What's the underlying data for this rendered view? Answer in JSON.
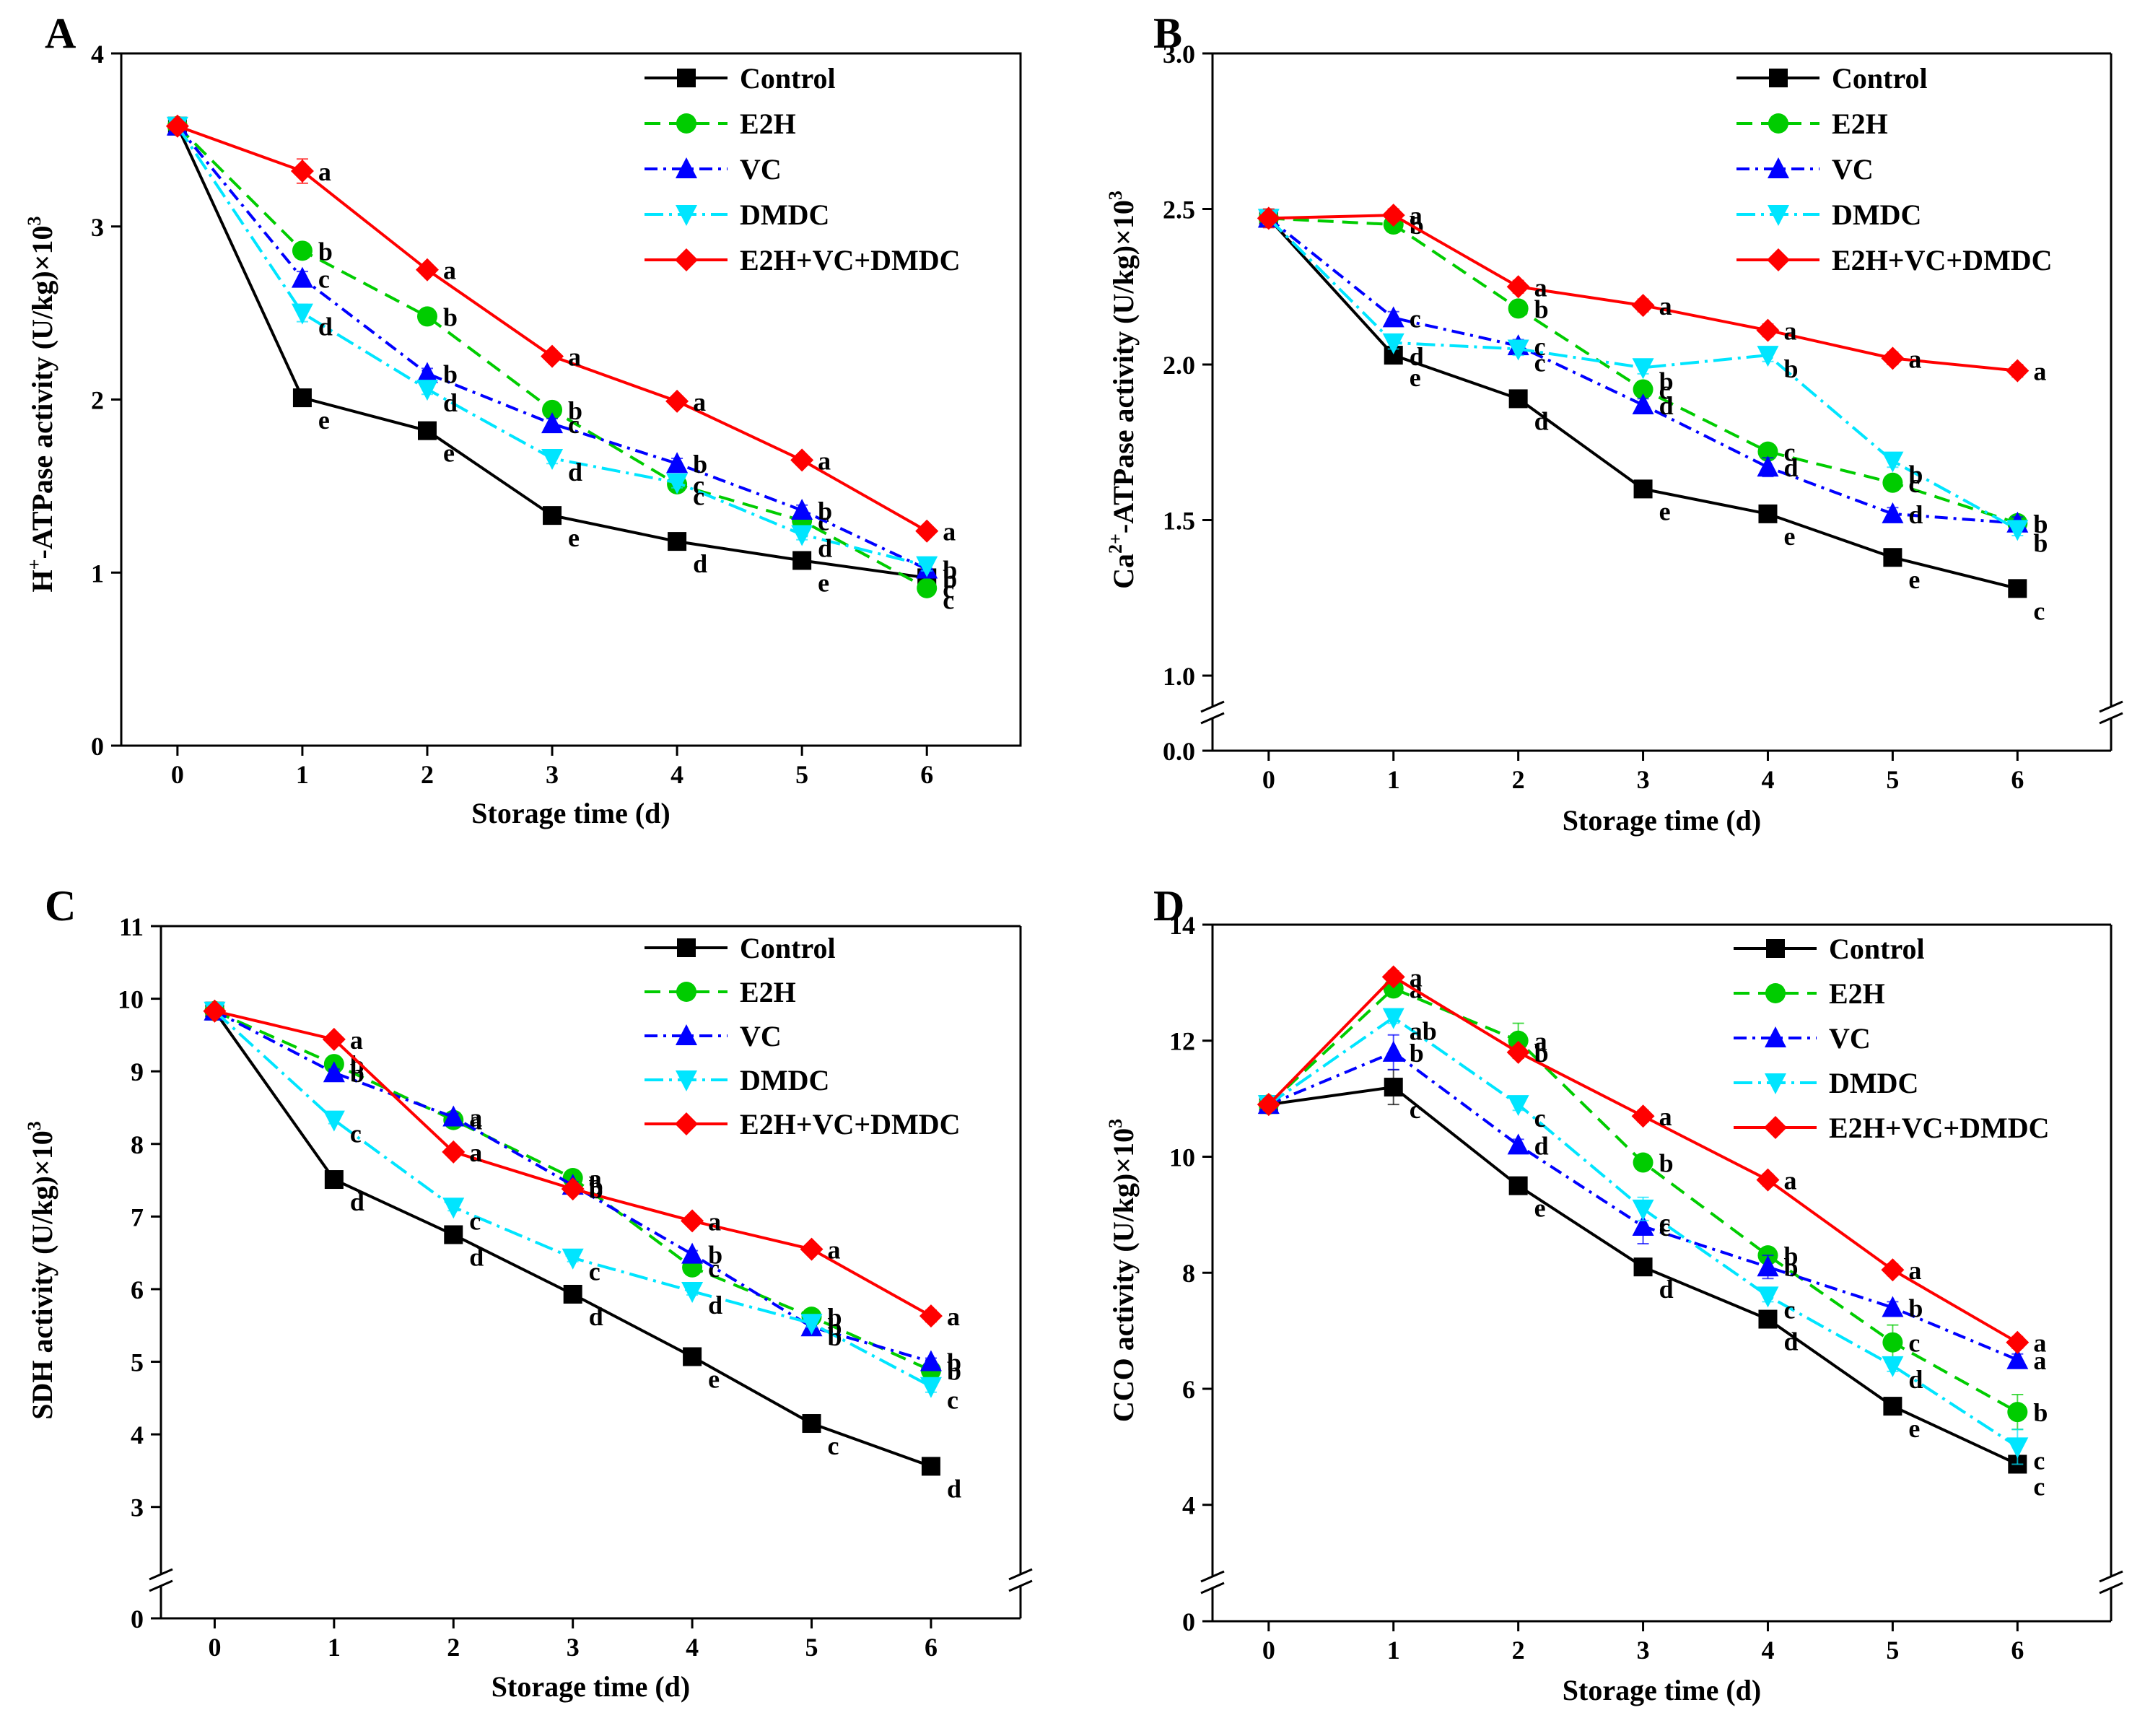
{
  "chart_data": [
    {
      "type": "line",
      "panel": "A",
      "xlabel": "Storage time (d)",
      "ylabel_parts": [
        {
          "t": "H"
        },
        {
          "t": "+",
          "sup": true
        },
        {
          "t": "-ATPase activity (U/kg)×10"
        },
        {
          "t": "3",
          "sup": true
        }
      ],
      "categories": [
        "0",
        "1",
        "2",
        "3",
        "4",
        "5",
        "6"
      ],
      "ylim": [
        0,
        4
      ],
      "yticks": [
        {
          "v": 0,
          "label": "0"
        },
        {
          "v": 1,
          "label": "1"
        },
        {
          "v": 2,
          "label": "2"
        },
        {
          "v": 3,
          "label": "3"
        },
        {
          "v": 4,
          "label": "4"
        }
      ],
      "series": [
        {
          "name": "Control",
          "values": [
            3.58,
            2.01,
            1.82,
            1.33,
            1.18,
            1.07,
            0.97
          ],
          "err": [
            0.02,
            0.02,
            0.02,
            0.03,
            0.02,
            0.02,
            0.02
          ],
          "letters": [
            "",
            "e",
            "e",
            "e",
            "d",
            "e",
            "c"
          ]
        },
        {
          "name": "E2H",
          "values": [
            3.58,
            2.86,
            2.48,
            1.94,
            1.51,
            1.3,
            0.91
          ],
          "err": [
            0.02,
            0.03,
            0.03,
            0.03,
            0.03,
            0.03,
            0.03
          ],
          "letters": [
            "",
            "b",
            "b",
            "b",
            "c",
            "c",
            "c"
          ]
        },
        {
          "name": "VC",
          "values": [
            3.58,
            2.7,
            2.15,
            1.86,
            1.63,
            1.36,
            1.02
          ],
          "err": [
            0.02,
            0.04,
            0.03,
            0.03,
            0.03,
            0.03,
            0.03
          ],
          "letters": [
            "",
            "c",
            "b",
            "c",
            "b",
            "b",
            "b"
          ]
        },
        {
          "name": "DMDC",
          "values": [
            3.58,
            2.5,
            2.06,
            1.66,
            1.52,
            1.22,
            1.04
          ],
          "err": [
            0.02,
            0.05,
            0.03,
            0.03,
            0.03,
            0.03,
            0.03
          ],
          "letters": [
            "",
            "d",
            "d",
            "d",
            "c",
            "d",
            "b"
          ]
        },
        {
          "name": "E2H+VC+DMDC",
          "values": [
            3.58,
            3.32,
            2.75,
            2.25,
            1.99,
            1.65,
            1.24
          ],
          "err": [
            0.02,
            0.07,
            0.03,
            0.03,
            0.03,
            0.03,
            0.03
          ],
          "letters": [
            "",
            "a",
            "a",
            "a",
            "a",
            "a",
            "a"
          ]
        }
      ]
    },
    {
      "type": "line",
      "panel": "B",
      "xlabel": "Storage time (d)",
      "ylabel_parts": [
        {
          "t": "Ca"
        },
        {
          "t": "2+",
          "sup": true
        },
        {
          "t": "-ATPase activity (U/kg)×10"
        },
        {
          "t": "3",
          "sup": true
        }
      ],
      "categories": [
        "0",
        "1",
        "2",
        "3",
        "4",
        "5",
        "6"
      ],
      "ylim": [
        1.0,
        3.0
      ],
      "axis_break_label": "0.0",
      "yticks": [
        {
          "v": 1.0,
          "label": "1.0"
        },
        {
          "v": 1.5,
          "label": "1.5"
        },
        {
          "v": 2.0,
          "label": "2.0"
        },
        {
          "v": 2.5,
          "label": "2.5"
        },
        {
          "v": 3.0,
          "label": "3.0"
        }
      ],
      "series": [
        {
          "name": "Control",
          "values": [
            2.47,
            2.03,
            1.89,
            1.6,
            1.52,
            1.38,
            1.28
          ],
          "err": [
            0.02,
            0.02,
            0.02,
            0.02,
            0.02,
            0.02,
            0.02
          ],
          "letters": [
            "",
            "e",
            "d",
            "e",
            "e",
            "e",
            "c"
          ]
        },
        {
          "name": "E2H",
          "values": [
            2.47,
            2.45,
            2.18,
            1.92,
            1.72,
            1.62,
            1.49
          ],
          "err": [
            0.02,
            0.02,
            0.02,
            0.02,
            0.02,
            0.02,
            0.02
          ],
          "letters": [
            "",
            "b",
            "b",
            "c",
            "c",
            "c",
            "b"
          ]
        },
        {
          "name": "VC",
          "values": [
            2.47,
            2.15,
            2.06,
            1.87,
            1.67,
            1.52,
            1.49
          ],
          "err": [
            0.02,
            0.02,
            0.02,
            0.02,
            0.03,
            0.02,
            0.02
          ],
          "letters": [
            "",
            "c",
            "c",
            "d",
            "d",
            "d",
            "b"
          ]
        },
        {
          "name": "DMDC",
          "values": [
            2.47,
            2.07,
            2.05,
            1.99,
            2.03,
            1.69,
            1.47
          ],
          "err": [
            0.02,
            0.02,
            0.02,
            0.02,
            0.02,
            0.02,
            0.02
          ],
          "letters": [
            "",
            "d",
            "c",
            "b",
            "b",
            "b",
            "b"
          ]
        },
        {
          "name": "E2H+VC+DMDC",
          "values": [
            2.47,
            2.48,
            2.25,
            2.19,
            2.11,
            2.02,
            1.98
          ],
          "err": [
            0.03,
            0.02,
            0.02,
            0.02,
            0.02,
            0.02,
            0.02
          ],
          "letters": [
            "",
            "a",
            "a",
            "a",
            "a",
            "a",
            "a"
          ]
        }
      ]
    },
    {
      "type": "line",
      "panel": "C",
      "xlabel": "Storage time (d)",
      "ylabel_parts": [
        {
          "t": "SDH activity (U/kg)×10"
        },
        {
          "t": "3",
          "sup": true
        }
      ],
      "categories": [
        "0",
        "1",
        "2",
        "3",
        "4",
        "5",
        "6"
      ],
      "ylim": [
        2.5,
        11
      ],
      "axis_break_label": "0",
      "yticks": [
        {
          "v": 3,
          "label": "3"
        },
        {
          "v": 4,
          "label": "4"
        },
        {
          "v": 5,
          "label": "5"
        },
        {
          "v": 6,
          "label": "6"
        },
        {
          "v": 7,
          "label": "7"
        },
        {
          "v": 8,
          "label": "8"
        },
        {
          "v": 9,
          "label": "9"
        },
        {
          "v": 10,
          "label": "10"
        },
        {
          "v": 11,
          "label": "11"
        }
      ],
      "series": [
        {
          "name": "Control",
          "values": [
            9.83,
            7.51,
            6.75,
            5.93,
            5.07,
            4.15,
            3.56
          ],
          "err": [
            0.05,
            0.05,
            0.05,
            0.05,
            0.05,
            0.05,
            0.08
          ],
          "letters": [
            "",
            "d",
            "d",
            "d",
            "e",
            "c",
            "d"
          ]
        },
        {
          "name": "E2H",
          "values": [
            9.83,
            9.1,
            8.33,
            7.53,
            6.3,
            5.62,
            4.88
          ],
          "err": [
            0.05,
            0.05,
            0.05,
            0.05,
            0.05,
            0.05,
            0.05
          ],
          "letters": [
            "",
            "b",
            "a",
            "a",
            "c",
            "b",
            "b"
          ]
        },
        {
          "name": "VC",
          "values": [
            9.83,
            8.98,
            8.37,
            7.43,
            6.48,
            5.48,
            5.0
          ],
          "err": [
            0.05,
            0.05,
            0.05,
            0.05,
            0.05,
            0.05,
            0.05
          ],
          "letters": [
            "",
            "b",
            "a",
            "b",
            "b",
            "b",
            "b"
          ]
        },
        {
          "name": "DMDC",
          "values": [
            9.83,
            8.33,
            7.13,
            6.43,
            5.97,
            5.53,
            4.66
          ],
          "err": [
            0.05,
            0.05,
            0.05,
            0.05,
            0.05,
            0.05,
            0.08
          ],
          "letters": [
            "",
            "c",
            "c",
            "c",
            "d",
            "b",
            "c"
          ]
        },
        {
          "name": "E2H+VC+DMDC",
          "values": [
            9.83,
            9.44,
            7.89,
            7.38,
            6.94,
            6.55,
            5.63
          ],
          "err": [
            0.05,
            0.05,
            0.05,
            0.05,
            0.05,
            0.05,
            0.08
          ],
          "letters": [
            "",
            "a",
            "a",
            "b",
            "a",
            "a",
            "a"
          ]
        }
      ]
    },
    {
      "type": "line",
      "panel": "D",
      "xlabel": "Storage time (d)",
      "ylabel_parts": [
        {
          "t": "CCO activity (U/kg)×10"
        },
        {
          "t": "3",
          "sup": true
        }
      ],
      "categories": [
        "0",
        "1",
        "2",
        "3",
        "4",
        "5",
        "6"
      ],
      "ylim": [
        3.3,
        14
      ],
      "axis_break_label": "0",
      "yticks": [
        {
          "v": 4,
          "label": "4"
        },
        {
          "v": 6,
          "label": "6"
        },
        {
          "v": 8,
          "label": "8"
        },
        {
          "v": 10,
          "label": "10"
        },
        {
          "v": 12,
          "label": "12"
        },
        {
          "v": 14,
          "label": "14"
        }
      ],
      "series": [
        {
          "name": "Control",
          "values": [
            10.9,
            11.2,
            9.5,
            8.1,
            7.2,
            5.7,
            4.7
          ],
          "err": [
            0.1,
            0.3,
            0.1,
            0.1,
            0.1,
            0.1,
            0.1
          ],
          "letters": [
            "",
            "c",
            "e",
            "d",
            "d",
            "e",
            "c"
          ]
        },
        {
          "name": "E2H",
          "values": [
            10.9,
            12.9,
            12.0,
            9.9,
            8.3,
            6.8,
            5.6
          ],
          "err": [
            0.1,
            0.1,
            0.3,
            0.1,
            0.1,
            0.3,
            0.3
          ],
          "letters": [
            "",
            "a",
            "a",
            "b",
            "b",
            "c",
            "b"
          ]
        },
        {
          "name": "VC",
          "values": [
            10.9,
            11.8,
            10.2,
            8.8,
            8.1,
            7.4,
            6.5
          ],
          "err": [
            0.1,
            0.3,
            0.1,
            0.3,
            0.2,
            0.1,
            0.1
          ],
          "letters": [
            "",
            "b",
            "d",
            "c",
            "b",
            "b",
            "a"
          ]
        },
        {
          "name": "DMDC",
          "values": [
            10.9,
            12.4,
            10.9,
            9.1,
            7.6,
            6.4,
            5.0
          ],
          "err": [
            0.1,
            0.1,
            0.1,
            0.2,
            0.1,
            0.1,
            0.3
          ],
          "letters": [
            "",
            "ab",
            "c",
            "c",
            "c",
            "d",
            "c"
          ]
        },
        {
          "name": "E2H+VC+DMDC",
          "values": [
            10.9,
            13.1,
            11.8,
            10.7,
            9.6,
            8.05,
            6.8
          ],
          "err": [
            0.1,
            0.1,
            0.1,
            0.1,
            0.1,
            0.1,
            0.1
          ],
          "letters": [
            "",
            "a",
            "b",
            "a",
            "a",
            "a",
            "a"
          ]
        }
      ]
    }
  ],
  "series_styles": [
    {
      "name": "Control",
      "color": "#000000",
      "dash": "",
      "marker": "square"
    },
    {
      "name": "E2H",
      "color": "#00cc00",
      "dash": "22,12",
      "marker": "circle"
    },
    {
      "name": "VC",
      "color": "#0000ff",
      "dash": "18,8,4,8",
      "marker": "triangle-up"
    },
    {
      "name": "DMDC",
      "color": "#00e5ff",
      "dash": "26,8,4,8",
      "marker": "triangle-down"
    },
    {
      "name": "E2H+VC+DMDC",
      "color": "#ff0000",
      "dash": "",
      "marker": "diamond"
    }
  ]
}
